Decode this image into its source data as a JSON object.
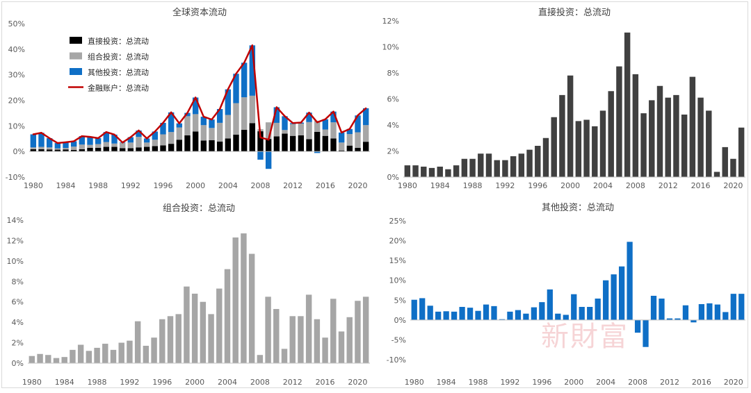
{
  "watermark": "新財富",
  "chart_data": [
    {
      "type": "bar",
      "stacked": true,
      "title": "全球资本流动",
      "ylim": [
        -0.1,
        0.5
      ],
      "yticks": [
        "-10%",
        "0%",
        "10%",
        "20%",
        "30%",
        "40%",
        "50%"
      ],
      "xticks": [
        "1980",
        "1984",
        "1988",
        "1992",
        "1996",
        "2000",
        "2004",
        "2008",
        "2012",
        "2016",
        "2020"
      ],
      "legend_position": "top-left",
      "grid": false,
      "x": [
        1980,
        1981,
        1982,
        1983,
        1984,
        1985,
        1986,
        1987,
        1988,
        1989,
        1990,
        1991,
        1992,
        1993,
        1994,
        1995,
        1996,
        1997,
        1998,
        1999,
        2000,
        2001,
        2002,
        2003,
        2004,
        2005,
        2006,
        2007,
        2008,
        2009,
        2010,
        2011,
        2012,
        2013,
        2014,
        2015,
        2016,
        2017,
        2018,
        2019,
        2020,
        2021
      ],
      "series": [
        {
          "name": "直接投资：总流动",
          "color": "#000000",
          "values": [
            0.009,
            0.009,
            0.008,
            0.007,
            0.008,
            0.006,
            0.009,
            0.014,
            0.014,
            0.018,
            0.018,
            0.013,
            0.013,
            0.016,
            0.018,
            0.021,
            0.024,
            0.03,
            0.046,
            0.063,
            0.078,
            0.043,
            0.044,
            0.039,
            0.051,
            0.066,
            0.085,
            0.111,
            0.079,
            0.049,
            0.059,
            0.07,
            0.061,
            0.063,
            0.048,
            0.077,
            0.061,
            0.051,
            0.004,
            0.023,
            0.014,
            0.038
          ]
        },
        {
          "name": "组合投资：总流动",
          "color": "#a6a6a6",
          "values": [
            0.007,
            0.009,
            0.008,
            0.005,
            0.006,
            0.013,
            0.018,
            0.012,
            0.015,
            0.019,
            0.013,
            0.02,
            0.022,
            0.041,
            0.017,
            0.025,
            0.043,
            0.046,
            0.048,
            0.075,
            0.068,
            0.06,
            0.048,
            0.073,
            0.092,
            0.123,
            0.127,
            0.107,
            0.008,
            0.065,
            0.053,
            0.014,
            0.046,
            0.046,
            0.067,
            0.043,
            0.025,
            0.063,
            0.031,
            0.045,
            0.061,
            0.065
          ]
        },
        {
          "name": "其他投资：总流动",
          "color": "#0f6fc6",
          "values": [
            0.051,
            0.055,
            0.036,
            0.021,
            0.022,
            0.021,
            0.033,
            0.031,
            0.023,
            0.039,
            0.035,
            0.002,
            0.021,
            0.025,
            0.016,
            0.032,
            0.045,
            0.077,
            0.016,
            0.013,
            0.065,
            0.033,
            0.033,
            0.054,
            0.1,
            0.115,
            0.135,
            0.197,
            -0.032,
            -0.068,
            0.061,
            0.054,
            0.004,
            0.004,
            0.037,
            -0.006,
            0.04,
            0.042,
            0.039,
            0.02,
            0.066,
            0.066
          ]
        },
        {
          "name": "金融账户：总流动",
          "color": "#c00000",
          "type": "line",
          "values": [
            0.067,
            0.073,
            0.052,
            0.033,
            0.036,
            0.04,
            0.06,
            0.057,
            0.052,
            0.076,
            0.066,
            0.035,
            0.056,
            0.082,
            0.051,
            0.078,
            0.112,
            0.153,
            0.11,
            0.151,
            0.211,
            0.136,
            0.125,
            0.166,
            0.243,
            0.304,
            0.347,
            0.415,
            0.055,
            0.046,
            0.173,
            0.138,
            0.111,
            0.113,
            0.152,
            0.114,
            0.126,
            0.156,
            0.074,
            0.088,
            0.141,
            0.169
          ]
        }
      ]
    },
    {
      "type": "bar",
      "title": "直接投资：总流动",
      "ylim": [
        0,
        0.12
      ],
      "yticks": [
        "0%",
        "2%",
        "4%",
        "6%",
        "8%",
        "10%",
        "12%"
      ],
      "xticks": [
        "1980",
        "1984",
        "1988",
        "1992",
        "1996",
        "2000",
        "2004",
        "2008",
        "2012",
        "2016",
        "2020"
      ],
      "color": "#404040",
      "x": [
        1980,
        1981,
        1982,
        1983,
        1984,
        1985,
        1986,
        1987,
        1988,
        1989,
        1990,
        1991,
        1992,
        1993,
        1994,
        1995,
        1996,
        1997,
        1998,
        1999,
        2000,
        2001,
        2002,
        2003,
        2004,
        2005,
        2006,
        2007,
        2008,
        2009,
        2010,
        2011,
        2012,
        2013,
        2014,
        2015,
        2016,
        2017,
        2018,
        2019,
        2020,
        2021
      ],
      "values": [
        0.009,
        0.009,
        0.008,
        0.007,
        0.008,
        0.006,
        0.009,
        0.014,
        0.014,
        0.018,
        0.018,
        0.013,
        0.013,
        0.016,
        0.018,
        0.021,
        0.024,
        0.03,
        0.046,
        0.063,
        0.078,
        0.043,
        0.044,
        0.039,
        0.051,
        0.066,
        0.085,
        0.111,
        0.079,
        0.049,
        0.059,
        0.07,
        0.061,
        0.063,
        0.048,
        0.077,
        0.061,
        0.051,
        0.004,
        0.023,
        0.014,
        0.038
      ]
    },
    {
      "type": "bar",
      "title": "组合投资：总流动",
      "ylim": [
        0,
        0.14
      ],
      "yticks": [
        "0%",
        "2%",
        "4%",
        "6%",
        "8%",
        "10%",
        "12%",
        "14%"
      ],
      "xticks": [
        "1980",
        "1984",
        "1988",
        "1992",
        "1996",
        "2000",
        "2004",
        "2008",
        "2012",
        "2016",
        "2020"
      ],
      "color": "#a6a6a6",
      "x": [
        1980,
        1981,
        1982,
        1983,
        1984,
        1985,
        1986,
        1987,
        1988,
        1989,
        1990,
        1991,
        1992,
        1993,
        1994,
        1995,
        1996,
        1997,
        1998,
        1999,
        2000,
        2001,
        2002,
        2003,
        2004,
        2005,
        2006,
        2007,
        2008,
        2009,
        2010,
        2011,
        2012,
        2013,
        2014,
        2015,
        2016,
        2017,
        2018,
        2019,
        2020,
        2021
      ],
      "values": [
        0.007,
        0.009,
        0.008,
        0.005,
        0.006,
        0.013,
        0.018,
        0.012,
        0.015,
        0.019,
        0.013,
        0.02,
        0.022,
        0.041,
        0.017,
        0.025,
        0.043,
        0.046,
        0.048,
        0.075,
        0.068,
        0.06,
        0.048,
        0.073,
        0.092,
        0.123,
        0.127,
        0.107,
        0.008,
        0.065,
        0.053,
        0.014,
        0.046,
        0.046,
        0.067,
        0.043,
        0.025,
        0.063,
        0.031,
        0.045,
        0.061,
        0.065
      ]
    },
    {
      "type": "bar",
      "title": "其他投资：总流动",
      "ylim": [
        -0.1,
        0.25
      ],
      "yticks": [
        "-10%",
        "-5%",
        "0%",
        "5%",
        "10%",
        "15%",
        "20%",
        "25%"
      ],
      "xticks": [
        "1980",
        "1984",
        "1988",
        "1992",
        "1996",
        "2000",
        "2004",
        "2008",
        "2012",
        "2016",
        "2020"
      ],
      "color": "#0f6fc6",
      "x": [
        1980,
        1981,
        1982,
        1983,
        1984,
        1985,
        1986,
        1987,
        1988,
        1989,
        1990,
        1991,
        1992,
        1993,
        1994,
        1995,
        1996,
        1997,
        1998,
        1999,
        2000,
        2001,
        2002,
        2003,
        2004,
        2005,
        2006,
        2007,
        2008,
        2009,
        2010,
        2011,
        2012,
        2013,
        2014,
        2015,
        2016,
        2017,
        2018,
        2019,
        2020,
        2021
      ],
      "values": [
        0.051,
        0.055,
        0.036,
        0.021,
        0.022,
        0.021,
        0.033,
        0.031,
        0.023,
        0.039,
        0.035,
        0.002,
        0.021,
        0.025,
        0.016,
        0.032,
        0.045,
        0.077,
        0.016,
        0.013,
        0.065,
        0.033,
        0.033,
        0.054,
        0.1,
        0.115,
        0.135,
        0.197,
        -0.032,
        -0.068,
        0.061,
        0.054,
        0.004,
        0.004,
        0.037,
        -0.006,
        0.04,
        0.042,
        0.039,
        0.02,
        0.066,
        0.066
      ]
    }
  ]
}
